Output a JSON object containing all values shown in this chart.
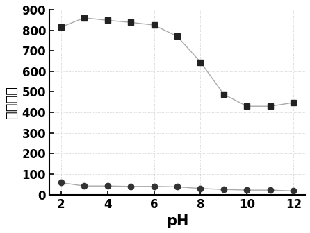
{
  "series1_x": [
    2,
    3,
    4,
    5,
    6,
    7,
    8,
    9,
    10,
    11,
    12
  ],
  "series1_y": [
    815,
    860,
    848,
    838,
    825,
    770,
    645,
    488,
    430,
    430,
    448
  ],
  "series2_x": [
    2,
    3,
    4,
    5,
    6,
    7,
    8,
    9,
    10,
    11,
    12
  ],
  "series2_y": [
    58,
    42,
    42,
    40,
    40,
    38,
    30,
    25,
    22,
    22,
    18
  ],
  "series1_color": "#222222",
  "series2_color": "#333333",
  "line1_color": "#aaaaaa",
  "line2_color": "#aaaaaa",
  "xlabel": "pH",
  "ylabel": "荧光强度",
  "xlim": [
    1.5,
    12.5
  ],
  "ylim": [
    0,
    900
  ],
  "yticks": [
    0,
    100,
    200,
    300,
    400,
    500,
    600,
    700,
    800,
    900
  ],
  "xticks": [
    2,
    4,
    6,
    8,
    10,
    12
  ],
  "background_color": "#ffffff",
  "grid_color": "#bbbbbb",
  "label_fontsize": 14,
  "tick_fontsize": 12,
  "xlabel_fontsize": 15
}
